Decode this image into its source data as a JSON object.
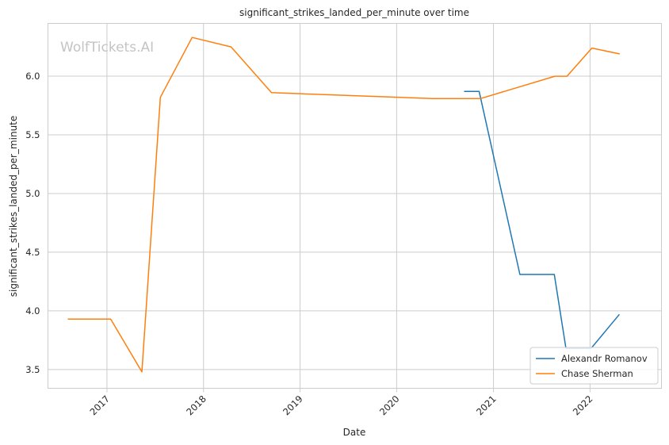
{
  "chart_data": {
    "type": "line",
    "title": "significant_strikes_landed_per_minute over time",
    "xlabel": "Date",
    "ylabel": "significant_strikes_landed_per_minute",
    "watermark": "WolfTickets.AI",
    "xlim": [
      "2016-05-23",
      "2022-09-28"
    ],
    "ylim": [
      3.34,
      6.45
    ],
    "x_ticks": [
      "2017",
      "2018",
      "2019",
      "2020",
      "2021",
      "2022"
    ],
    "y_ticks": [
      "3.5",
      "4.0",
      "4.5",
      "5.0",
      "5.5",
      "6.0"
    ],
    "grid": true,
    "legend_position": "bottom-right",
    "series": [
      {
        "name": "Alexandr Romanov",
        "color": "#1f77b4",
        "points": [
          {
            "x": "2020-09-12",
            "y": 5.87
          },
          {
            "x": "2020-11-08",
            "y": 5.87
          },
          {
            "x": "2021-04-11",
            "y": 4.31
          },
          {
            "x": "2021-08-19",
            "y": 4.31
          },
          {
            "x": "2021-10-02",
            "y": 3.68
          },
          {
            "x": "2022-01-05",
            "y": 3.68
          },
          {
            "x": "2022-04-22",
            "y": 3.97
          }
        ]
      },
      {
        "name": "Chase Sherman",
        "color": "#ff7f0e",
        "points": [
          {
            "x": "2016-08-06",
            "y": 3.93
          },
          {
            "x": "2017-01-15",
            "y": 3.93
          },
          {
            "x": "2017-05-13",
            "y": 3.48
          },
          {
            "x": "2017-07-22",
            "y": 5.82
          },
          {
            "x": "2017-11-19",
            "y": 6.33
          },
          {
            "x": "2018-04-15",
            "y": 6.25
          },
          {
            "x": "2018-09-15",
            "y": 5.86
          },
          {
            "x": "2020-05-16",
            "y": 5.81
          },
          {
            "x": "2020-11-14",
            "y": 5.81
          },
          {
            "x": "2021-08-21",
            "y": 6.0
          },
          {
            "x": "2021-10-06",
            "y": 6.0
          },
          {
            "x": "2022-01-08",
            "y": 6.24
          },
          {
            "x": "2022-04-23",
            "y": 6.19
          }
        ]
      }
    ]
  }
}
